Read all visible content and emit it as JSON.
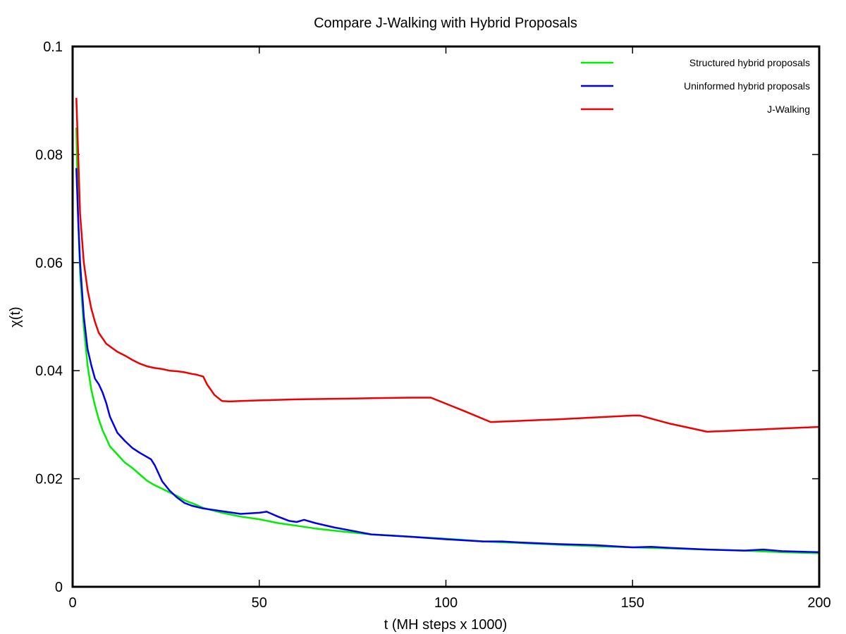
{
  "chart_data": {
    "type": "line",
    "title": "Compare J-Walking with Hybrid Proposals",
    "xlabel": "t (MH steps x 1000)",
    "ylabel": "χ(t)",
    "xlim": [
      0,
      200
    ],
    "ylim": [
      0,
      0.1
    ],
    "x_ticks": [
      "0",
      "50",
      "100",
      "150",
      "200"
    ],
    "y_ticks": [
      "0",
      "0.02",
      "0.04",
      "0.06",
      "0.08",
      "0.1"
    ],
    "grid": false,
    "legend_position": "top-right",
    "series": [
      {
        "name": "Structured hybrid proposals",
        "color": "#00ee00",
        "x": [
          1,
          1.5,
          2,
          3,
          4,
          5,
          6,
          7,
          8,
          9,
          10,
          12,
          14,
          16,
          18,
          20,
          22,
          25,
          28,
          30,
          33,
          35,
          40,
          45,
          50,
          55,
          60,
          65,
          70,
          80,
          90,
          100,
          110,
          120,
          130,
          140,
          150,
          160,
          170,
          180,
          190,
          200
        ],
        "y": [
          0.085,
          0.068,
          0.058,
          0.048,
          0.041,
          0.0365,
          0.0335,
          0.031,
          0.029,
          0.0275,
          0.026,
          0.0245,
          0.023,
          0.022,
          0.0208,
          0.0196,
          0.0188,
          0.0178,
          0.0168,
          0.016,
          0.0152,
          0.0146,
          0.0137,
          0.013,
          0.0125,
          0.0118,
          0.0113,
          0.0108,
          0.0104,
          0.0097,
          0.0093,
          0.0089,
          0.0084,
          0.0081,
          0.0078,
          0.0075,
          0.0073,
          0.0071,
          0.0069,
          0.0067,
          0.0064,
          0.0062
        ]
      },
      {
        "name": "Uninformed hybrid proposals",
        "color": "#0000ee",
        "x": [
          1,
          1.5,
          2,
          3,
          4,
          5,
          6,
          7,
          8,
          9,
          10,
          12,
          14,
          16,
          18,
          20,
          21,
          22,
          24,
          26,
          28,
          30,
          32,
          35,
          40,
          45,
          50,
          52,
          55,
          58,
          60,
          62,
          65,
          70,
          80,
          90,
          100,
          110,
          115,
          120,
          130,
          140,
          150,
          155,
          160,
          170,
          180,
          185,
          190,
          200
        ],
        "y": [
          0.0775,
          0.068,
          0.06,
          0.05,
          0.044,
          0.041,
          0.0385,
          0.0375,
          0.036,
          0.034,
          0.0315,
          0.0285,
          0.027,
          0.0257,
          0.0248,
          0.024,
          0.0236,
          0.0225,
          0.0195,
          0.0178,
          0.0165,
          0.0155,
          0.015,
          0.0145,
          0.014,
          0.0135,
          0.0137,
          0.0139,
          0.013,
          0.0122,
          0.012,
          0.0124,
          0.0118,
          0.011,
          0.0097,
          0.0093,
          0.0088,
          0.0084,
          0.0084,
          0.0082,
          0.0079,
          0.0077,
          0.0073,
          0.0074,
          0.0072,
          0.0069,
          0.0067,
          0.0069,
          0.0066,
          0.0064
        ]
      },
      {
        "name": "J-Walking",
        "color": "#ee0000",
        "x": [
          1,
          1.5,
          2,
          3,
          4,
          5,
          6,
          7,
          8,
          9,
          10,
          12,
          14,
          16,
          18,
          20,
          22,
          24,
          26,
          28,
          30,
          32,
          33,
          35,
          36,
          38,
          40,
          42,
          45,
          50,
          55,
          60,
          70,
          80,
          90,
          96,
          105,
          112,
          130,
          150,
          152,
          160,
          170,
          180,
          190,
          200
        ],
        "y": [
          0.0905,
          0.08,
          0.069,
          0.06,
          0.055,
          0.0515,
          0.049,
          0.047,
          0.046,
          0.045,
          0.0445,
          0.0435,
          0.0428,
          0.042,
          0.0413,
          0.0408,
          0.0405,
          0.0403,
          0.04,
          0.0399,
          0.0397,
          0.0394,
          0.0393,
          0.0389,
          0.0375,
          0.0355,
          0.0344,
          0.0343,
          0.0344,
          0.0345,
          0.0346,
          0.0347,
          0.0348,
          0.0349,
          0.035,
          0.035,
          0.0325,
          0.0305,
          0.031,
          0.0317,
          0.0317,
          0.0302,
          0.0287,
          0.029,
          0.0293,
          0.0296
        ]
      }
    ]
  }
}
